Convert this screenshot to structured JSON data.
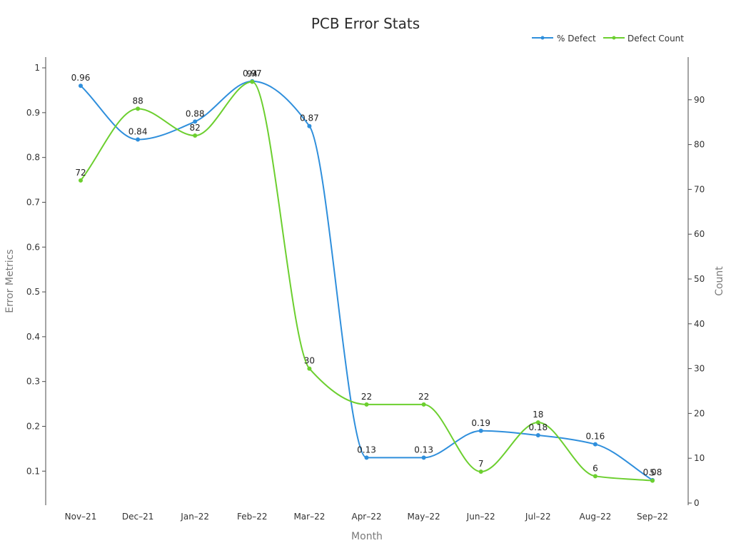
{
  "chart_data": {
    "type": "line",
    "title": "PCB Error Stats",
    "xlabel": "Month",
    "ylabel_left": "Error Metrics",
    "ylabel_right": "Count",
    "categories": [
      "Nov–21",
      "Dec–21",
      "Jan–22",
      "Feb–22",
      "Mar–22",
      "Apr–22",
      "May–22",
      "Jun–22",
      "Jul–22",
      "Aug–22",
      "Sep–22"
    ],
    "y_left_range": [
      0.024,
      1.024
    ],
    "y_left_ticks": [
      0.1,
      0.2,
      0.3,
      0.4,
      0.5,
      0.6,
      0.7,
      0.8,
      0.9,
      1
    ],
    "y_left_tick_labels": [
      "0.1",
      "0.2",
      "0.3",
      "0.4",
      "0.5",
      "0.6",
      "0.7",
      "0.8",
      "0.9",
      "1"
    ],
    "y_right_range": [
      0,
      100
    ],
    "y_right_ticks": [
      0,
      10,
      20,
      30,
      40,
      50,
      60,
      70,
      80,
      90
    ],
    "y_right_tick_labels": [
      "0",
      "10",
      "20",
      "30",
      "40",
      "50",
      "60",
      "70",
      "80",
      "90"
    ],
    "series": [
      {
        "name": "% Defect",
        "axis": "left",
        "color": "#2f8fdc",
        "values": [
          0.96,
          0.84,
          0.88,
          0.97,
          0.87,
          0.13,
          0.13,
          0.19,
          0.18,
          0.16,
          0.08
        ],
        "labels": [
          "0.96",
          "0.84",
          "0.88",
          "0.97",
          "0.87",
          "0.13",
          "0.13",
          "0.19",
          "0.18",
          "0.16",
          "0.08"
        ]
      },
      {
        "name": "Defect Count",
        "axis": "right",
        "color": "#6ccf2f",
        "values": [
          72,
          88,
          82,
          94,
          30,
          22,
          22,
          7,
          18,
          6,
          5
        ],
        "labels": [
          "72",
          "88",
          "82",
          "94",
          "30",
          "22",
          "22",
          "7",
          "18",
          "6",
          "5"
        ]
      }
    ],
    "legend_position": "top-right",
    "grid": false,
    "line_shape": "smooth"
  }
}
